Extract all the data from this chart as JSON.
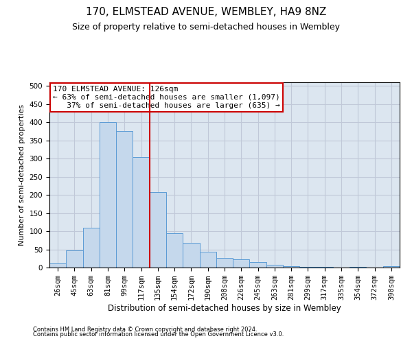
{
  "title": "170, ELMSTEAD AVENUE, WEMBLEY, HA9 8NZ",
  "subtitle": "Size of property relative to semi-detached houses in Wembley",
  "xlabel": "Distribution of semi-detached houses by size in Wembley",
  "ylabel": "Number of semi-detached properties",
  "footnote1": "Contains HM Land Registry data © Crown copyright and database right 2024.",
  "footnote2": "Contains public sector information licensed under the Open Government Licence v3.0.",
  "bin_labels": [
    "26sqm",
    "45sqm",
    "63sqm",
    "81sqm",
    "99sqm",
    "117sqm",
    "135sqm",
    "154sqm",
    "172sqm",
    "190sqm",
    "208sqm",
    "226sqm",
    "245sqm",
    "263sqm",
    "281sqm",
    "299sqm",
    "317sqm",
    "335sqm",
    "354sqm",
    "372sqm",
    "390sqm"
  ],
  "bar_heights": [
    12,
    48,
    110,
    400,
    375,
    305,
    207,
    95,
    68,
    43,
    26,
    23,
    15,
    8,
    4,
    2,
    1,
    0,
    1,
    0,
    4
  ],
  "bar_color": "#c5d8ec",
  "bar_edge_color": "#5b9bd5",
  "bar_width": 1.0,
  "red_line_x": 5.5,
  "red_line_color": "#cc0000",
  "annotation_box_color": "#cc0000",
  "property_label": "170 ELMSTEAD AVENUE: 126sqm",
  "pct_smaller": 63,
  "pct_smaller_count": 1097,
  "pct_larger": 37,
  "pct_larger_count": 635,
  "ylim": [
    0,
    510
  ],
  "yticks": [
    0,
    50,
    100,
    150,
    200,
    250,
    300,
    350,
    400,
    450,
    500
  ],
  "grid_color": "#c0c8d8",
  "background_color": "#dce6f0",
  "title_fontsize": 11,
  "subtitle_fontsize": 9,
  "xlabel_fontsize": 8.5,
  "ylabel_fontsize": 8,
  "tick_fontsize": 7.5,
  "annotation_fontsize": 8,
  "footnote_fontsize": 6
}
